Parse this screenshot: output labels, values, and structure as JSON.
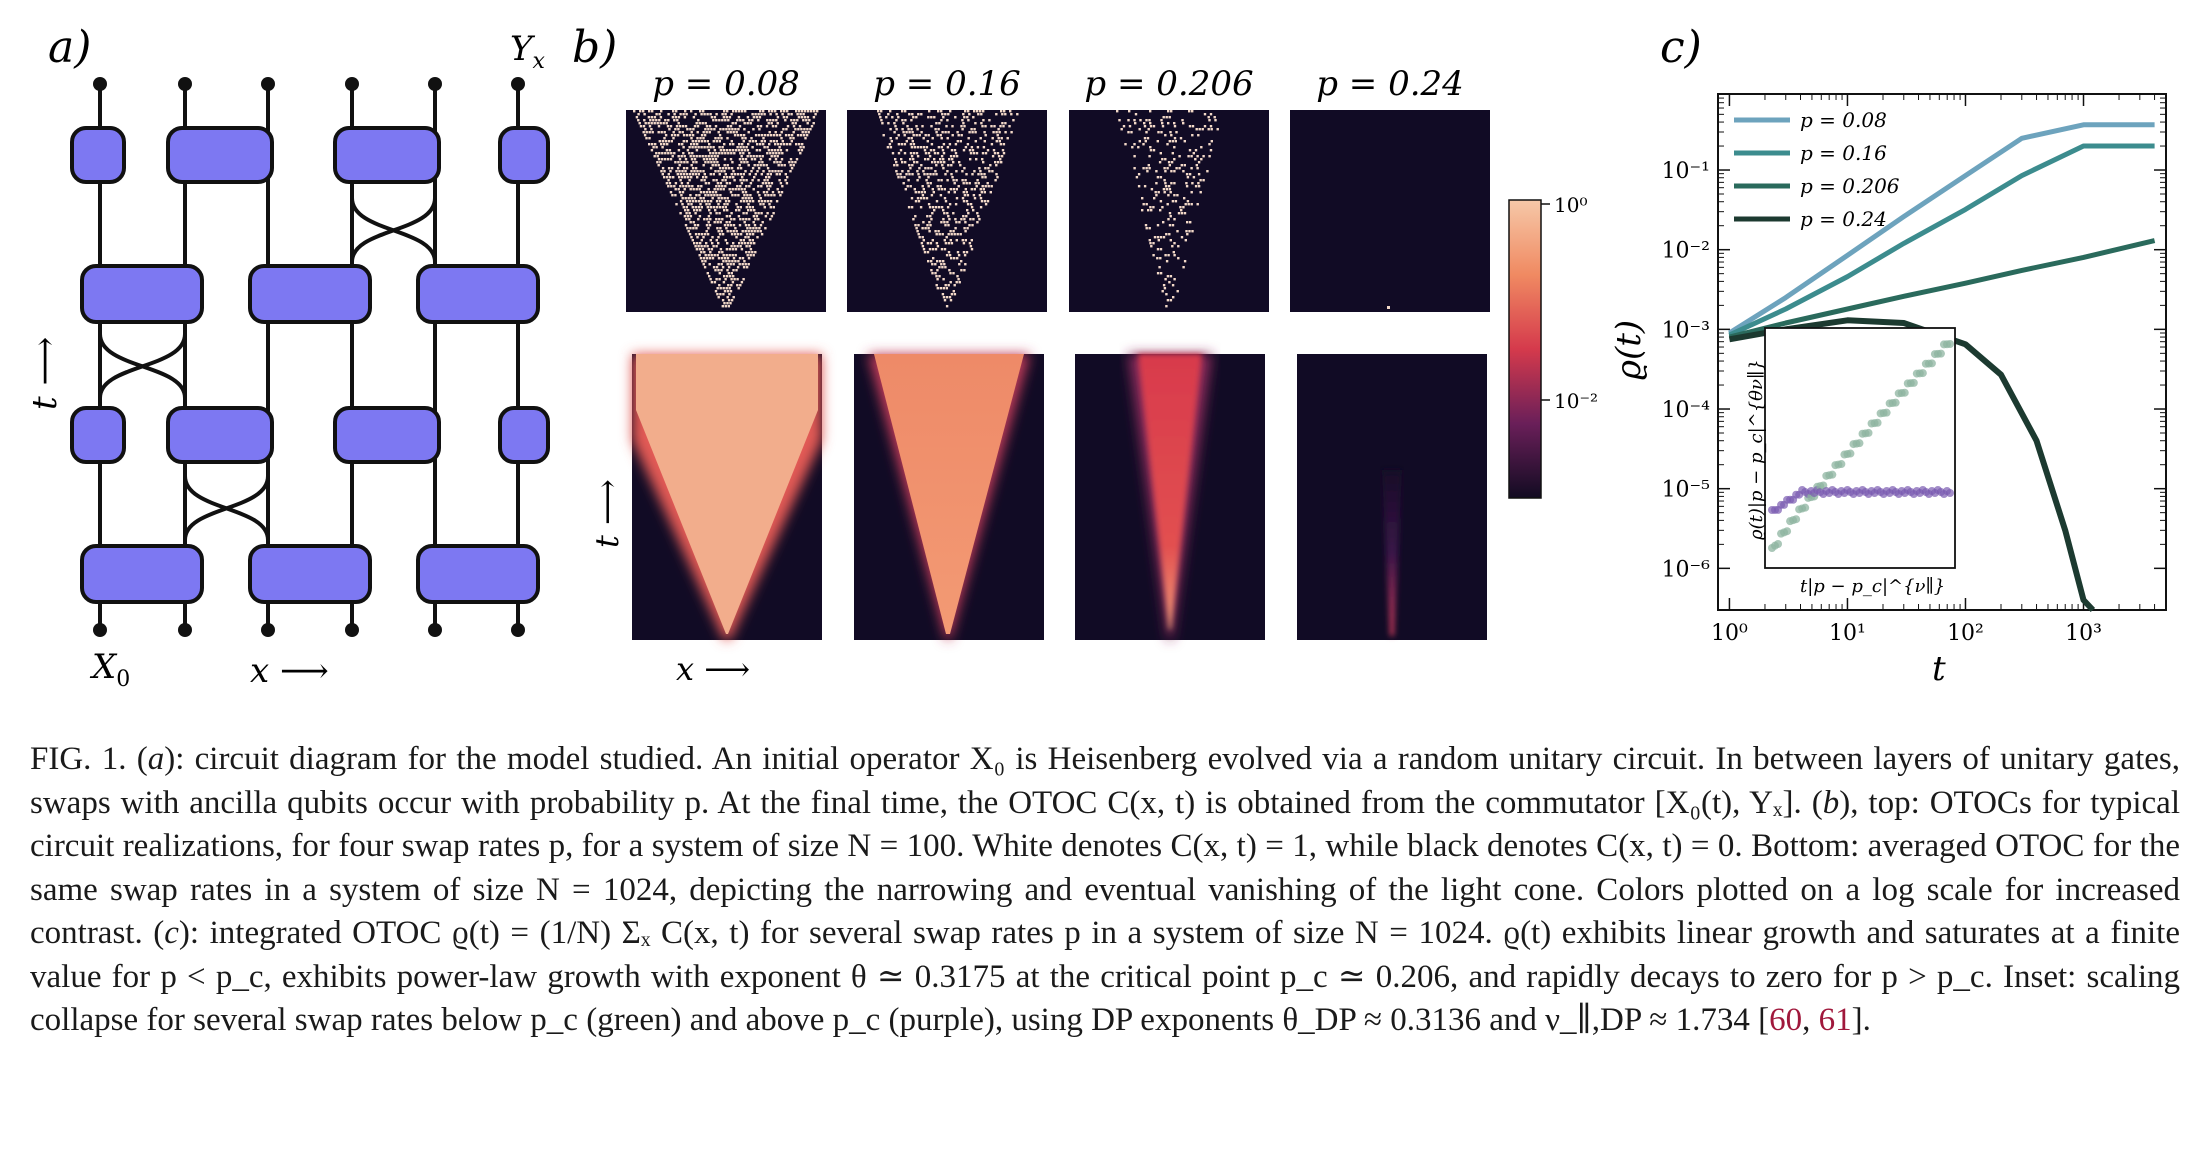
{
  "panel_a": {
    "label": "a)",
    "top_operator": "Y",
    "top_operator_sub": "x",
    "bottom_operator": "X",
    "bottom_operator_sub": "0",
    "time_axis": "t ⟶",
    "space_axis": "x ⟶",
    "colors": {
      "gate": "#7d78f2",
      "stroke": "#111111"
    }
  },
  "panel_b": {
    "label": "b)",
    "p_labels": [
      "p = 0.08",
      "p = 0.16",
      "p = 0.206",
      "p = 0.24"
    ],
    "time_axis": "t ⟶",
    "space_axis": "x ⟶",
    "colorbar_ticks": [
      "10⁰",
      "10⁻²"
    ],
    "colors": {
      "background": "#110b25",
      "typical": "#f3d9c8"
    }
  },
  "panel_c": {
    "label": "c)",
    "ylabel": "ϱ(t)",
    "xlabel": "t",
    "inset_ylabel": "ϱ(t)|p − p_c|^{θν∥}",
    "inset_xlabel": "t|p − p_c|^{ν∥}",
    "legend_position": "top-left"
  },
  "chart_data": {
    "type": "line",
    "xscale": "log",
    "yscale": "log",
    "xlim": [
      0.8,
      5000
    ],
    "ylim": [
      3e-07,
      0.9
    ],
    "x_ticks": [
      "10⁰",
      "10¹",
      "10²",
      "10³"
    ],
    "y_ticks": [
      "10⁻⁶",
      "10⁻⁵",
      "10⁻⁴",
      "10⁻³",
      "10⁻²",
      "10⁻¹"
    ],
    "series": [
      {
        "name": "p = 0.08",
        "color": "#6da3bd",
        "x": [
          1,
          3,
          10,
          30,
          100,
          300,
          1000,
          1200,
          4000
        ],
        "y": [
          0.0009,
          0.0025,
          0.0085,
          0.026,
          0.085,
          0.25,
          0.37,
          0.37,
          0.37
        ]
      },
      {
        "name": "p = 0.16",
        "color": "#3c8c8e",
        "x": [
          1,
          3,
          10,
          30,
          100,
          300,
          1000,
          2000,
          3000,
          4000
        ],
        "y": [
          0.00085,
          0.0018,
          0.0046,
          0.012,
          0.032,
          0.085,
          0.2,
          0.2,
          0.2,
          0.2
        ]
      },
      {
        "name": "p = 0.206",
        "color": "#2a6a5c",
        "x": [
          1,
          3,
          10,
          30,
          100,
          300,
          1000,
          4000
        ],
        "y": [
          0.0008,
          0.0012,
          0.0018,
          0.0026,
          0.0038,
          0.0055,
          0.008,
          0.013
        ]
      },
      {
        "name": "p = 0.24",
        "color": "#1c3a30",
        "x": [
          1,
          3,
          10,
          30,
          100,
          200,
          400,
          700,
          1000,
          1200
        ],
        "y": [
          0.00075,
          0.001,
          0.0013,
          0.0012,
          0.00065,
          0.00027,
          4e-05,
          3e-06,
          4e-07,
          3e-07
        ]
      }
    ]
  },
  "caption": {
    "text_1": "FIG. 1. (",
    "text_2": "a",
    "text_3": "): circuit diagram for the model studied. An initial operator X₀ is Heisenberg evolved via a random unitary circuit. In between layers of unitary gates, swaps with ancilla qubits occur with probability p. At the final time, the OTOC C(x, t) is obtained from the commutator [X₀(t), Yₓ]. (",
    "text_4": "b",
    "text_5": "), top: OTOCs for typical circuit realizations, for four swap rates p, for a system of size N = 100. White denotes C(x, t) = 1, while black denotes C(x, t) = 0. Bottom: averaged OTOC for the same swap rates in a system of size N = 1024, depicting the narrowing and eventual vanishing of the light cone. Colors plotted on a log scale for increased contrast. (",
    "text_6": "c",
    "text_7": "): integrated OTOC ϱ(t) = (1/N) Σₓ C(x, t) for several swap rates p in a system of size N = 1024. ϱ(t) exhibits linear growth and saturates at a finite value for p < p_c, exhibits power-law growth with exponent θ ≃ 0.3175 at the critical point p_c ≃ 0.206, and rapidly decays to zero for p > p_c. Inset: scaling collapse for several swap rates below p_c (green) and above p_c (purple), using DP exponents θ_DP ≈ 0.3136 and ν_∥,DP ≈ 1.734 [",
    "cite_1": "60",
    "text_8": ", ",
    "cite_2": "61",
    "text_9": "]."
  }
}
